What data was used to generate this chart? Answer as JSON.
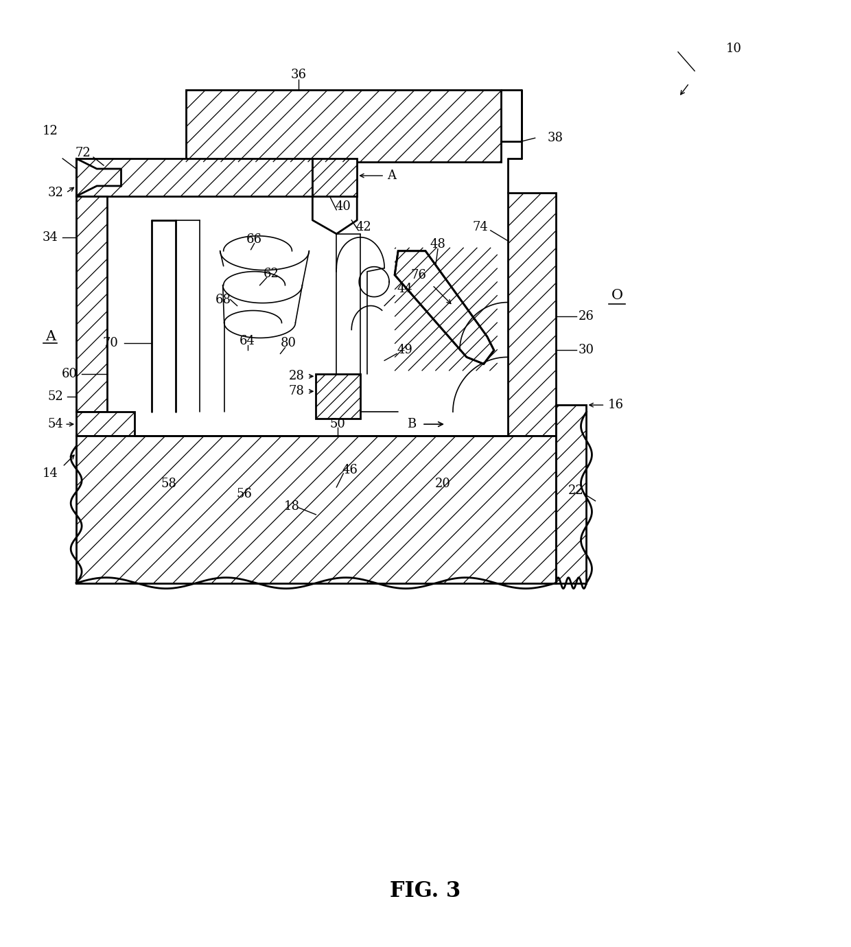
{
  "title": "FIG. 3",
  "title_fontsize": 20,
  "fig_width": 12.4,
  "fig_height": 13.8,
  "dpi": 100,
  "xlim": [
    0,
    1240
  ],
  "ylim": [
    0,
    1380
  ],
  "label_fs": 13,
  "lw_main": 2.0,
  "lw_thin": 1.2,
  "hatch_sp": 18
}
